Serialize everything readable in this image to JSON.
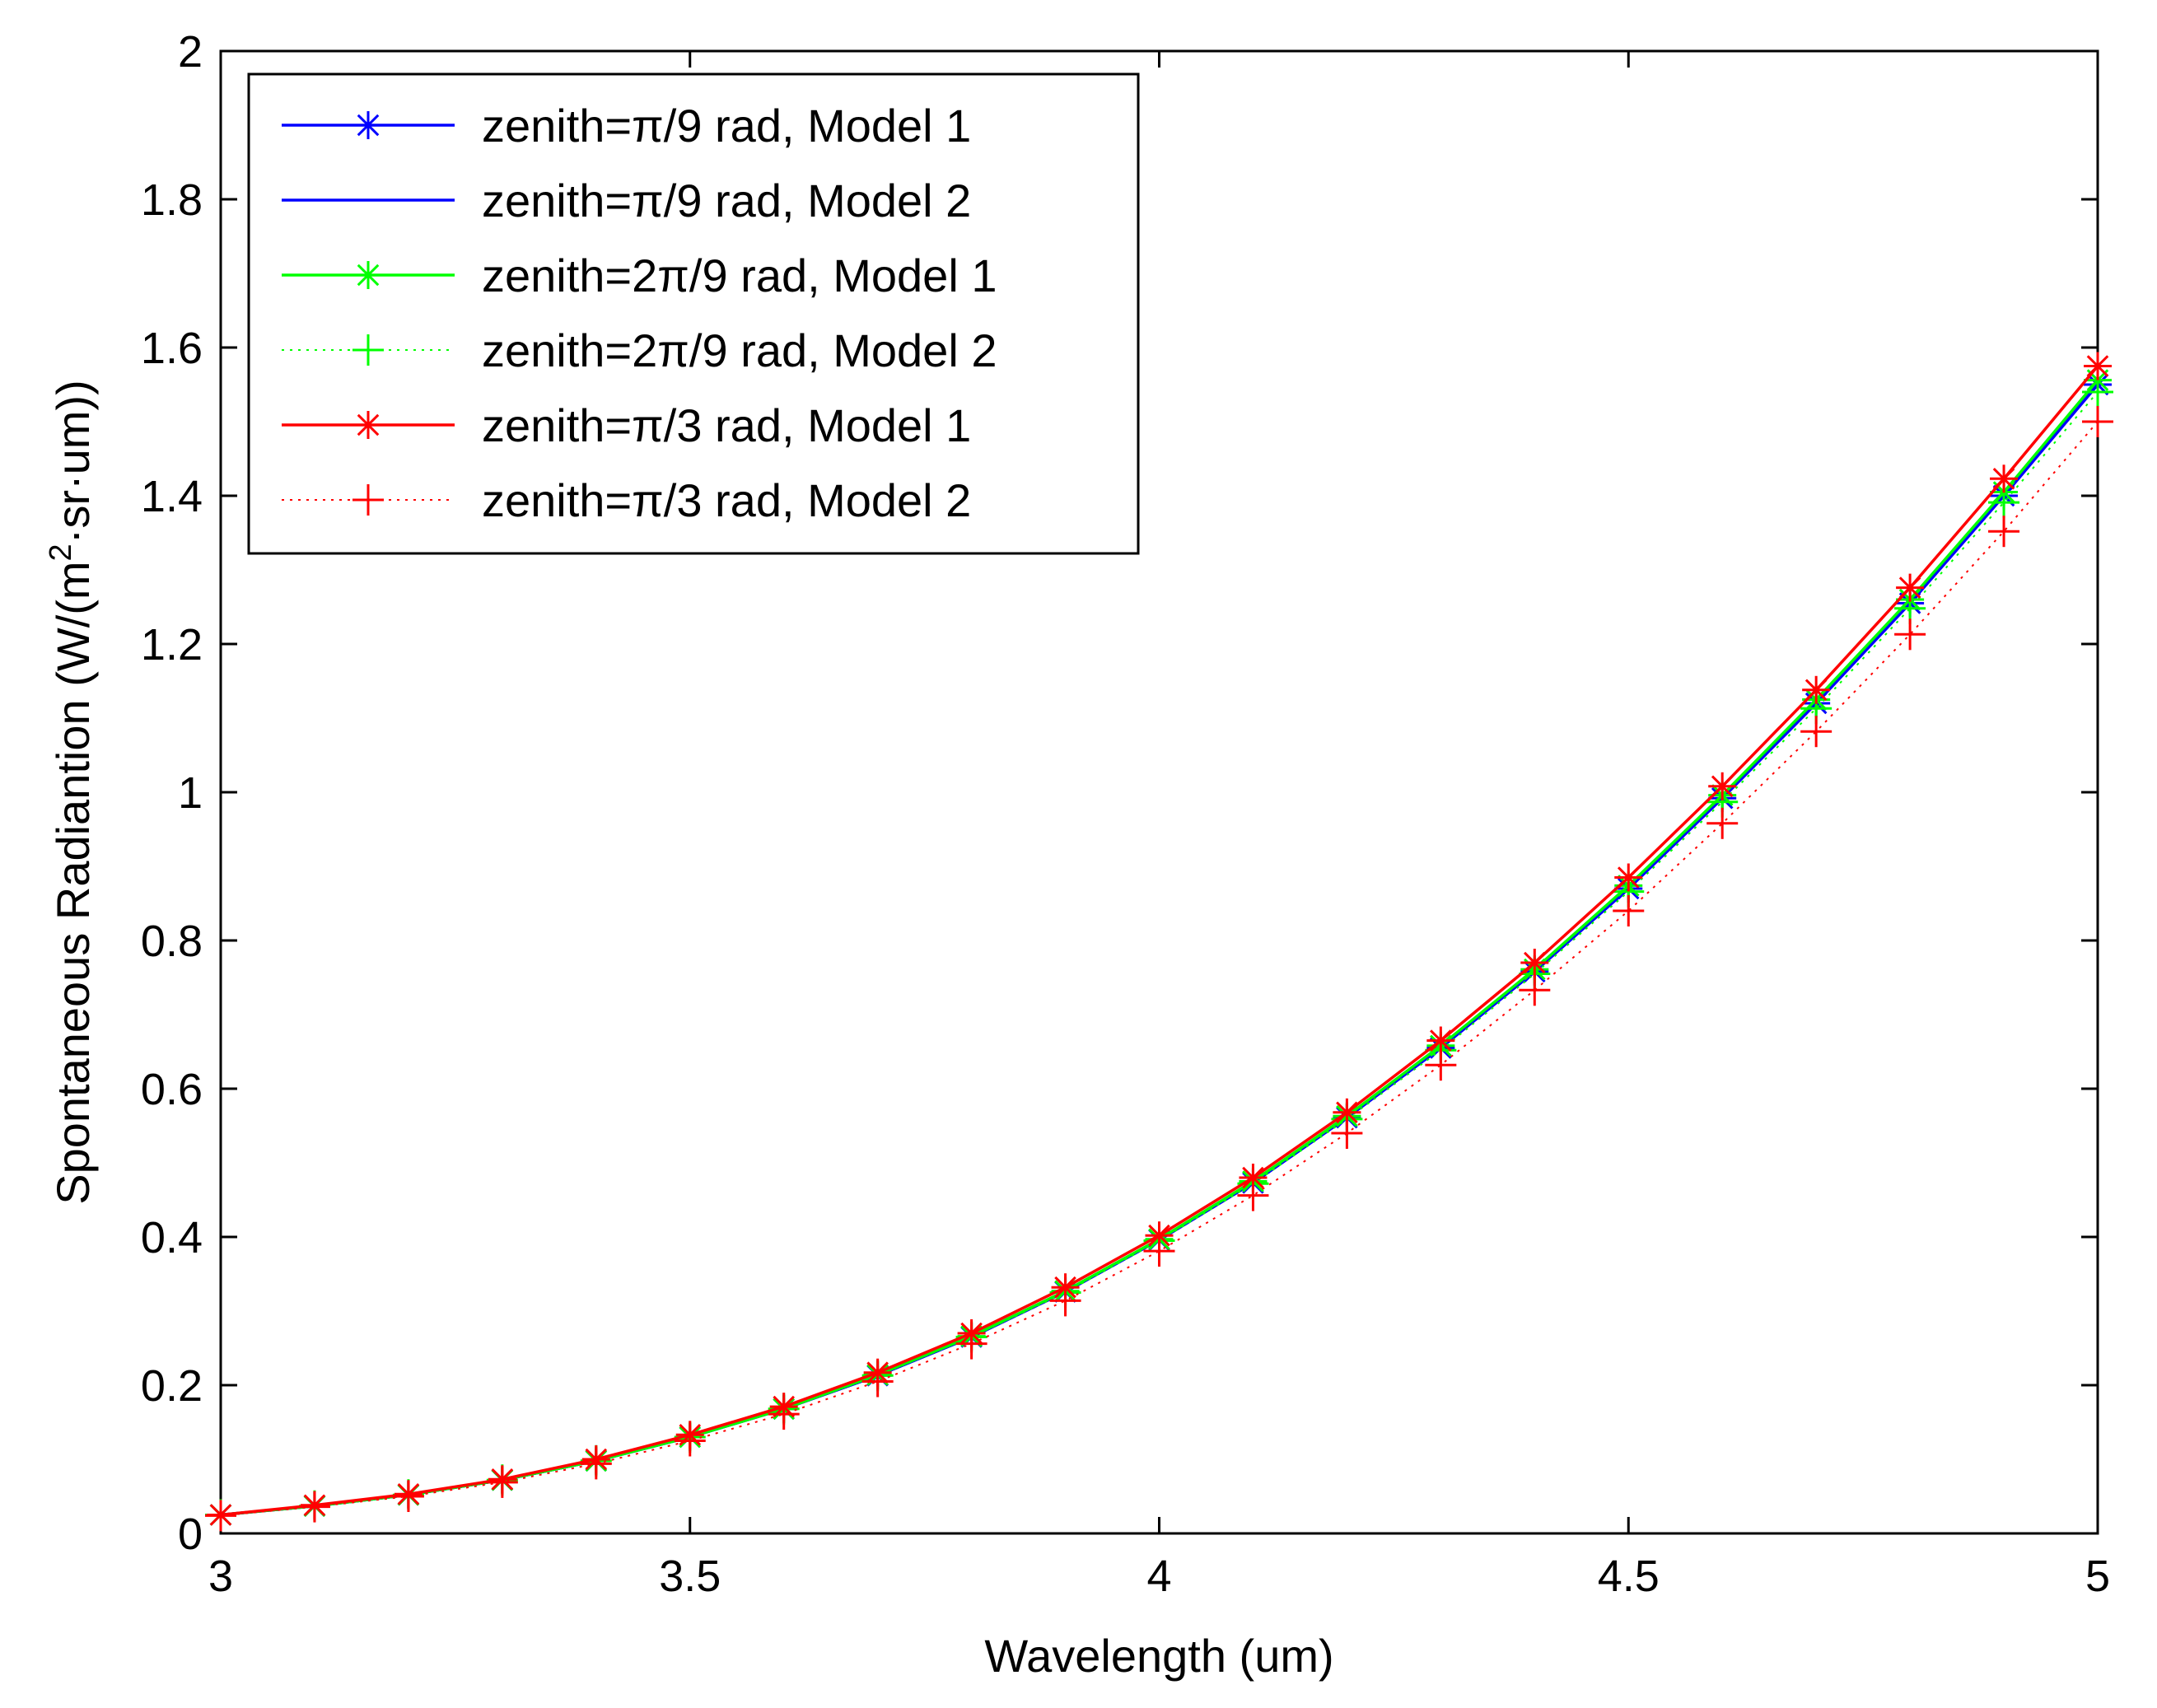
{
  "chart_data": {
    "type": "line",
    "title": "",
    "xlabel": "Wavelength (um)",
    "ylabel_prefix": "Spontaneous Radiantion (W/(m",
    "ylabel_sup": "2",
    "ylabel_suffix": "·sr·um))",
    "xlim": [
      3,
      5
    ],
    "ylim": [
      0,
      2
    ],
    "xticks": [
      3,
      3.5,
      4,
      4.5,
      5
    ],
    "xtick_labels": [
      "3",
      "3.5",
      "4",
      "4.5",
      "5"
    ],
    "yticks": [
      0,
      0.2,
      0.4,
      0.6,
      0.8,
      1,
      1.2,
      1.4,
      1.6,
      1.8,
      2
    ],
    "ytick_labels": [
      "0",
      "0.2",
      "0.4",
      "0.6",
      "0.8",
      "1",
      "1.2",
      "1.4",
      "1.6",
      "1.8",
      "2"
    ],
    "grid": false,
    "legend_position": "top-left",
    "x": [
      3.0,
      3.1,
      3.2,
      3.3,
      3.4,
      3.5,
      3.6,
      3.7,
      3.8,
      3.9,
      4.0,
      4.1,
      4.2,
      4.3,
      4.4,
      4.5,
      4.6,
      4.7,
      4.8,
      4.9,
      5.0
    ],
    "series": [
      {
        "name": "zenith=π/9 rad, Model 1",
        "color": "#0000ff",
        "line": "solid",
        "marker": "star",
        "values": [
          0.025,
          0.037,
          0.052,
          0.072,
          0.098,
          0.13,
          0.168,
          0.213,
          0.265,
          0.326,
          0.396,
          0.473,
          0.561,
          0.655,
          0.758,
          0.87,
          0.992,
          1.12,
          1.255,
          1.4,
          1.55
        ]
      },
      {
        "name": "zenith=π/9 rad, Model 2",
        "color": "#0000ff",
        "line": "solid",
        "marker": "none",
        "values": [
          0.025,
          0.037,
          0.052,
          0.072,
          0.098,
          0.13,
          0.168,
          0.213,
          0.265,
          0.326,
          0.396,
          0.473,
          0.561,
          0.655,
          0.758,
          0.87,
          0.992,
          1.12,
          1.255,
          1.4,
          1.55
        ]
      },
      {
        "name": "zenith=2π/9 rad, Model 1",
        "color": "#00ff00",
        "line": "solid",
        "marker": "star",
        "values": [
          0.025,
          0.037,
          0.052,
          0.072,
          0.098,
          0.13,
          0.168,
          0.214,
          0.266,
          0.327,
          0.397,
          0.475,
          0.563,
          0.658,
          0.761,
          0.874,
          0.996,
          1.125,
          1.26,
          1.405,
          1.556
        ]
      },
      {
        "name": "zenith=2π/9 rad, Model 2",
        "color": "#00ff00",
        "line": "dotted",
        "marker": "plus",
        "values": [
          0.025,
          0.037,
          0.052,
          0.072,
          0.098,
          0.13,
          0.168,
          0.213,
          0.265,
          0.325,
          0.395,
          0.472,
          0.559,
          0.652,
          0.755,
          0.866,
          0.987,
          1.113,
          1.248,
          1.391,
          1.54
        ]
      },
      {
        "name": "zenith=π/3 rad, Model 1",
        "color": "#ff0000",
        "line": "solid",
        "marker": "star",
        "values": [
          0.025,
          0.038,
          0.053,
          0.073,
          0.1,
          0.133,
          0.171,
          0.217,
          0.27,
          0.332,
          0.402,
          0.48,
          0.568,
          0.665,
          0.77,
          0.885,
          1.008,
          1.138,
          1.276,
          1.423,
          1.575
        ]
      },
      {
        "name": "zenith=π/3 rad, Model 2",
        "color": "#ff0000",
        "line": "dotted",
        "marker": "plus",
        "values": [
          0.024,
          0.036,
          0.05,
          0.069,
          0.094,
          0.125,
          0.161,
          0.205,
          0.256,
          0.314,
          0.381,
          0.456,
          0.54,
          0.632,
          0.733,
          0.84,
          0.958,
          1.082,
          1.213,
          1.352,
          1.5
        ]
      }
    ]
  }
}
